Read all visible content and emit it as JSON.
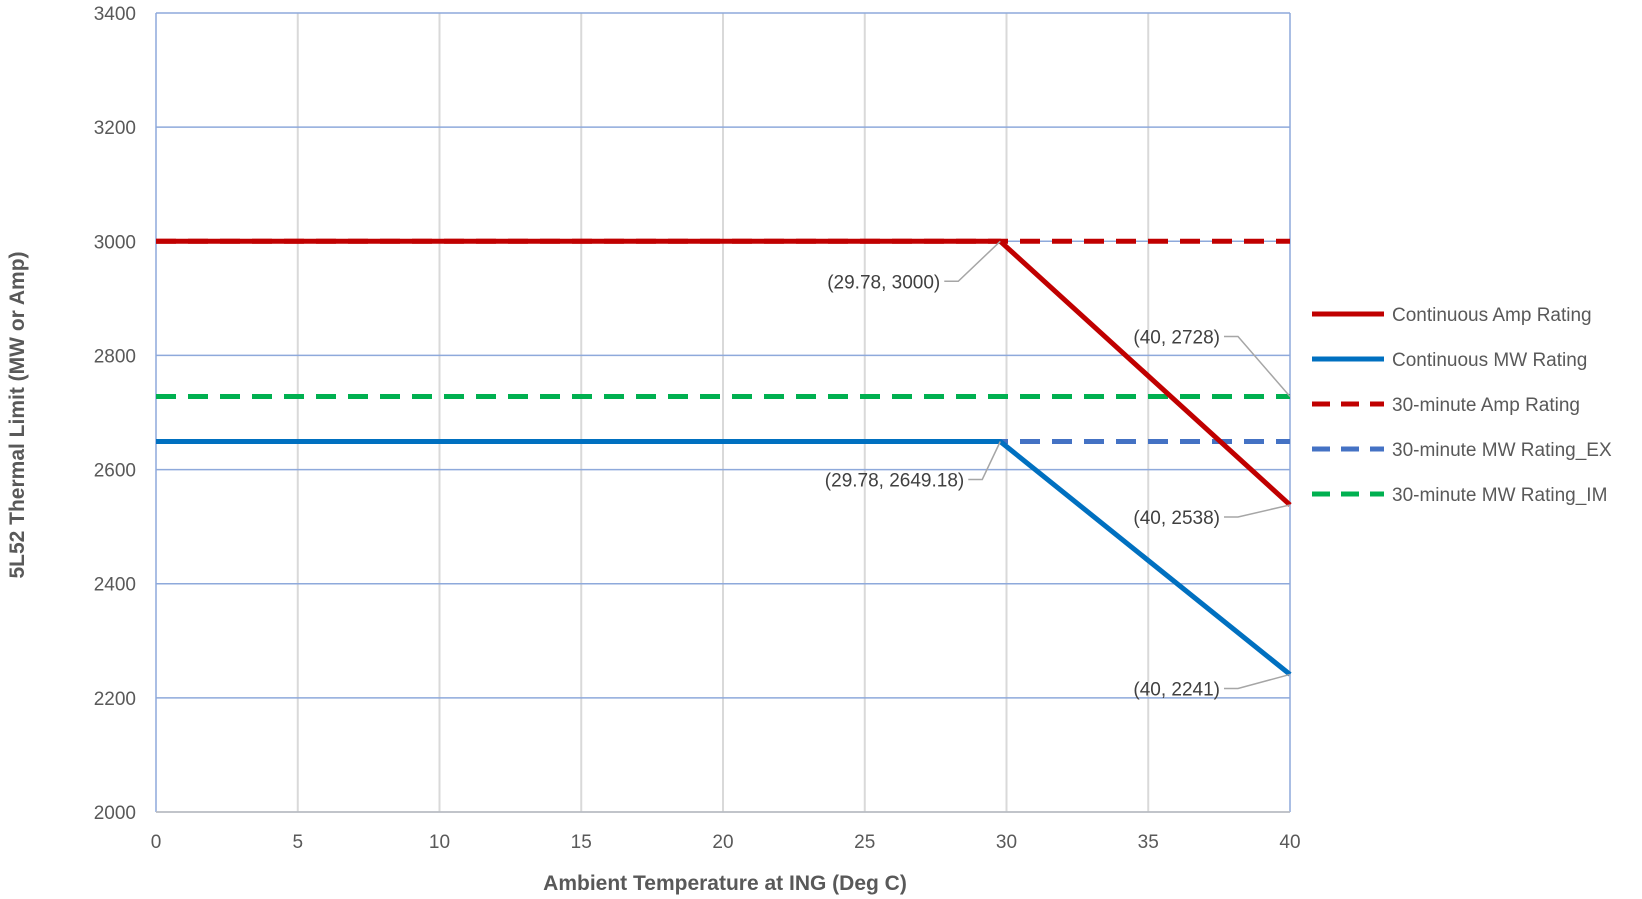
{
  "chart_data": {
    "type": "line",
    "title": "",
    "xlabel": "Ambient Temperature at ING (Deg C)",
    "ylabel": "5L52 Thermal Limit (MW or Amp)",
    "xlim": [
      0,
      40
    ],
    "ylim": [
      2000,
      3400
    ],
    "xticks": [
      0,
      5,
      10,
      15,
      20,
      25,
      30,
      35,
      40
    ],
    "yticks": [
      2000,
      2200,
      2400,
      2600,
      2800,
      3000,
      3200,
      3400
    ],
    "grid": true,
    "legend_position": "right",
    "series": [
      {
        "name": "Continuous Amp Rating",
        "color": "#C00000",
        "dash": "solid",
        "x": [
          0,
          29.78,
          40
        ],
        "y": [
          3000,
          3000,
          2538
        ]
      },
      {
        "name": "Continuous MW Rating",
        "color": "#0070C0",
        "dash": "solid",
        "x": [
          0,
          29.78,
          40
        ],
        "y": [
          2649.18,
          2649.18,
          2241
        ]
      },
      {
        "name": "30-minute Amp Rating",
        "color": "#C00000",
        "dash": "dashed",
        "x": [
          0,
          40
        ],
        "y": [
          3000,
          3000
        ]
      },
      {
        "name": "30-minute MW Rating_EX",
        "color": "#4472C4",
        "dash": "dashed",
        "x": [
          0,
          40
        ],
        "y": [
          2649.18,
          2649.18
        ]
      },
      {
        "name": "30-minute MW Rating_IM",
        "color": "#00B050",
        "dash": "dashed",
        "x": [
          0,
          40
        ],
        "y": [
          2728,
          2728
        ]
      }
    ],
    "annotations": [
      {
        "text": "(29.78, 3000)",
        "x": 29.78,
        "y": 3000
      },
      {
        "text": "(40, 2728)",
        "x": 40,
        "y": 2728
      },
      {
        "text": "(29.78, 2649.18)",
        "x": 29.78,
        "y": 2649.18
      },
      {
        "text": "(40, 2538)",
        "x": 40,
        "y": 2538
      },
      {
        "text": "(40, 2241)",
        "x": 40,
        "y": 2241
      }
    ]
  }
}
